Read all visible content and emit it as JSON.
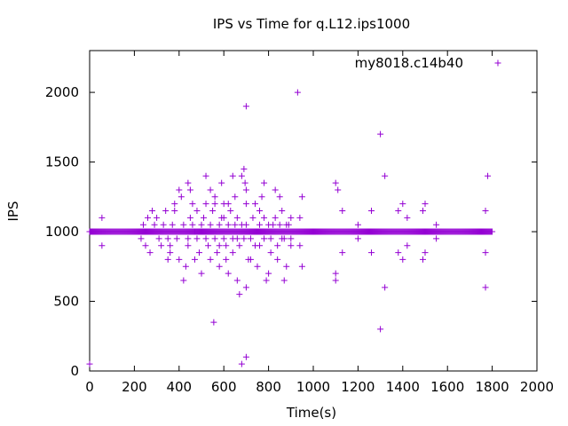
{
  "chart_data": {
    "type": "scatter",
    "title": "IPS vs Time for q.L12.ips1000",
    "xlabel": "Time(s)",
    "ylabel": "IPS",
    "xlim": [
      0,
      2000
    ],
    "ylim": [
      0,
      2300
    ],
    "xticks": [
      0,
      200,
      400,
      600,
      800,
      1000,
      1200,
      1400,
      1600,
      1800,
      2000
    ],
    "yticks": [
      0,
      500,
      1000,
      1500,
      2000
    ],
    "grid": false,
    "legend_position": "top-right",
    "colors": {
      "series": "#9400d3"
    },
    "series": [
      {
        "name": "my8018.c14b40",
        "baseline": {
          "x_start": 0,
          "x_end": 1800,
          "y": 1000
        },
        "points": [
          [
            0,
            50
          ],
          [
            55,
            1100
          ],
          [
            55,
            900
          ],
          [
            555,
            350
          ],
          [
            680,
            50
          ],
          [
            700,
            100
          ],
          [
            700,
            1900
          ],
          [
            930,
            2000
          ],
          [
            1300,
            1700
          ],
          [
            1300,
            300
          ],
          [
            1320,
            1400
          ],
          [
            1320,
            600
          ],
          [
            1780,
            1400
          ],
          [
            1770,
            600
          ],
          [
            1770,
            1150
          ],
          [
            1770,
            850
          ],
          [
            1100,
            1350
          ],
          [
            1110,
            1300
          ],
          [
            1130,
            1150
          ],
          [
            1130,
            850
          ],
          [
            1100,
            700
          ],
          [
            1100,
            650
          ],
          [
            1200,
            1050
          ],
          [
            1200,
            950
          ],
          [
            1260,
            1150
          ],
          [
            1260,
            850
          ],
          [
            1380,
            1150
          ],
          [
            1400,
            1200
          ],
          [
            1420,
            1100
          ],
          [
            1400,
            800
          ],
          [
            1380,
            850
          ],
          [
            1420,
            900
          ],
          [
            1500,
            1200
          ],
          [
            1490,
            1150
          ],
          [
            1500,
            850
          ],
          [
            1490,
            800
          ],
          [
            1550,
            1050
          ],
          [
            1550,
            950
          ],
          [
            950,
            750
          ],
          [
            950,
            1250
          ],
          [
            940,
            1100
          ],
          [
            940,
            900
          ],
          [
            900,
            900
          ],
          [
            900,
            1100
          ],
          [
            420,
            650
          ],
          [
            440,
            1350
          ],
          [
            450,
            1300
          ],
          [
            500,
            700
          ],
          [
            520,
            1400
          ],
          [
            540,
            1300
          ],
          [
            560,
            1250
          ],
          [
            580,
            750
          ],
          [
            590,
            1350
          ],
          [
            600,
            1200
          ],
          [
            620,
            700
          ],
          [
            640,
            1400
          ],
          [
            650,
            1250
          ],
          [
            660,
            650
          ],
          [
            670,
            550
          ],
          [
            680,
            1400
          ],
          [
            690,
            1450
          ],
          [
            695,
            1350
          ],
          [
            700,
            600
          ],
          [
            700,
            1300
          ],
          [
            720,
            800
          ],
          [
            740,
            1200
          ],
          [
            750,
            750
          ],
          [
            760,
            1150
          ],
          [
            770,
            1250
          ],
          [
            780,
            1350
          ],
          [
            790,
            650
          ],
          [
            800,
            700
          ],
          [
            810,
            850
          ],
          [
            820,
            1050
          ],
          [
            830,
            1300
          ],
          [
            840,
            800
          ],
          [
            850,
            1250
          ],
          [
            860,
            1150
          ],
          [
            870,
            650
          ],
          [
            880,
            750
          ],
          [
            860,
            950
          ],
          [
            880,
            1050
          ],
          [
            700,
            1050
          ],
          [
            720,
            950
          ],
          [
            760,
            1050
          ],
          [
            780,
            950
          ],
          [
            300,
            1100
          ],
          [
            320,
            900
          ],
          [
            340,
            1150
          ],
          [
            360,
            850
          ],
          [
            380,
            1200
          ],
          [
            400,
            800
          ],
          [
            410,
            1250
          ],
          [
            430,
            750
          ],
          [
            460,
            1200
          ],
          [
            470,
            800
          ],
          [
            480,
            1150
          ],
          [
            490,
            850
          ],
          [
            510,
            1100
          ],
          [
            530,
            900
          ],
          [
            550,
            1150
          ],
          [
            570,
            850
          ],
          [
            590,
            1100
          ],
          [
            610,
            900
          ],
          [
            630,
            1150
          ],
          [
            640,
            850
          ],
          [
            660,
            1100
          ],
          [
            670,
            900
          ],
          [
            290,
            1050
          ],
          [
            310,
            950
          ],
          [
            330,
            1050
          ],
          [
            350,
            950
          ],
          [
            370,
            1050
          ],
          [
            390,
            950
          ],
          [
            420,
            1050
          ],
          [
            440,
            950
          ],
          [
            460,
            1050
          ],
          [
            480,
            950
          ],
          [
            500,
            1050
          ],
          [
            520,
            950
          ],
          [
            540,
            1050
          ],
          [
            560,
            950
          ],
          [
            580,
            1050
          ],
          [
            600,
            950
          ],
          [
            620,
            1050
          ],
          [
            640,
            950
          ],
          [
            260,
            1100
          ],
          [
            240,
            1050
          ],
          [
            230,
            950
          ],
          [
            250,
            900
          ],
          [
            270,
            850
          ],
          [
            280,
            1150
          ],
          [
            350,
            800
          ],
          [
            400,
            1300
          ],
          [
            380,
            1150
          ],
          [
            360,
            900
          ],
          [
            440,
            900
          ],
          [
            450,
            1100
          ],
          [
            470,
            1000
          ],
          [
            520,
            1200
          ],
          [
            540,
            800
          ],
          [
            560,
            1200
          ],
          [
            580,
            900
          ],
          [
            600,
            1100
          ],
          [
            610,
            800
          ],
          [
            620,
            1200
          ],
          [
            650,
            1050
          ],
          [
            660,
            950
          ],
          [
            680,
            1050
          ],
          [
            690,
            950
          ],
          [
            700,
            1200
          ],
          [
            710,
            800
          ],
          [
            730,
            1100
          ],
          [
            740,
            900
          ],
          [
            760,
            900
          ],
          [
            780,
            1100
          ],
          [
            800,
            1050
          ],
          [
            810,
            950
          ],
          [
            830,
            1100
          ],
          [
            840,
            900
          ],
          [
            850,
            1050
          ],
          [
            870,
            950
          ],
          [
            890,
            1050
          ],
          [
            900,
            950
          ]
        ]
      }
    ]
  }
}
